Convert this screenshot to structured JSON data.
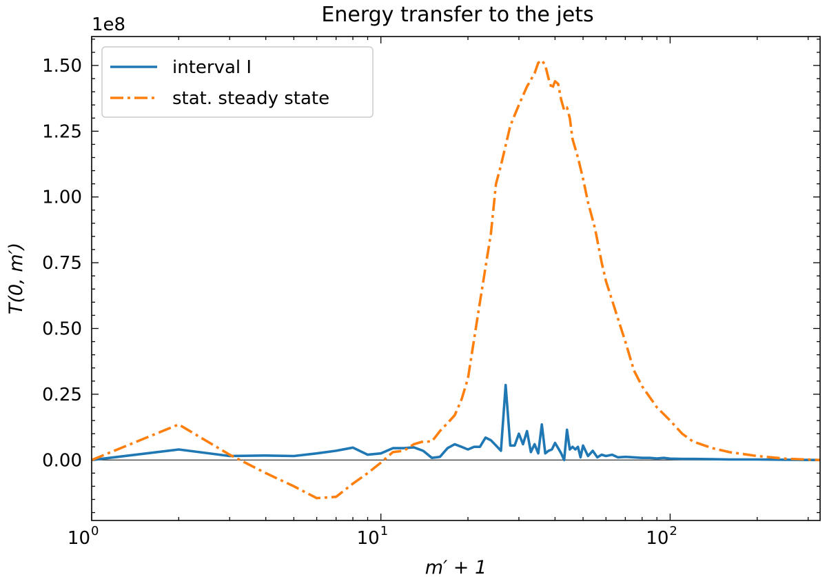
{
  "chart_data": {
    "type": "line",
    "title": "Energy transfer to the jets",
    "xlabel": "m′ + 1",
    "ylabel": "T(0, m′)",
    "x_scale": "log",
    "xlim": [
      1,
      330
    ],
    "ylim": [
      -0.23,
      1.61
    ],
    "y_offset_text": "1e8",
    "y_unit_multiplier": 100000000,
    "x_ticks": [
      {
        "value": 1,
        "base": "10",
        "exp": "0"
      },
      {
        "value": 10,
        "base": "10",
        "exp": "1"
      },
      {
        "value": 100,
        "base": "10",
        "exp": "2"
      }
    ],
    "y_ticks": [
      {
        "value": 0.0,
        "label": "0.00"
      },
      {
        "value": 0.25,
        "label": "0.25"
      },
      {
        "value": 0.5,
        "label": "0.50"
      },
      {
        "value": 0.75,
        "label": "0.75"
      },
      {
        "value": 1.0,
        "label": "1.00"
      },
      {
        "value": 1.25,
        "label": "1.25"
      },
      {
        "value": 1.5,
        "label": "1.50"
      }
    ],
    "zero_line": true,
    "grid": false,
    "legend_position": "top-left",
    "series": [
      {
        "name": "interval I",
        "color": "#1f77b4",
        "style": "solid",
        "x": [
          1,
          2,
          3,
          4,
          5,
          6,
          7,
          8,
          9,
          10,
          11,
          12,
          13,
          14,
          15,
          16,
          17,
          18,
          19,
          20,
          21,
          22,
          23,
          24,
          25,
          26,
          27,
          28,
          29,
          30,
          31,
          32,
          33,
          34,
          35,
          36,
          37,
          38,
          39,
          40,
          41,
          42,
          43,
          44,
          45,
          46,
          47,
          48,
          49,
          50,
          52,
          54,
          56,
          58,
          60,
          63,
          66,
          70,
          75,
          80,
          85,
          90,
          95,
          100,
          110,
          120,
          140,
          160,
          200,
          250,
          330
        ],
        "values": [
          0.0,
          0.04,
          0.015,
          0.017,
          0.015,
          0.025,
          0.035,
          0.047,
          0.02,
          0.025,
          0.045,
          0.045,
          0.048,
          0.035,
          0.008,
          0.012,
          0.045,
          0.06,
          0.05,
          0.04,
          0.05,
          0.05,
          0.085,
          0.075,
          0.055,
          0.035,
          0.285,
          0.055,
          0.055,
          0.1,
          0.06,
          0.11,
          0.03,
          0.06,
          0.025,
          0.135,
          0.025,
          0.035,
          0.04,
          0.065,
          0.045,
          0.025,
          0.0,
          0.115,
          0.04,
          0.05,
          0.04,
          0.05,
          0.01,
          0.055,
          0.015,
          0.035,
          0.01,
          0.02,
          0.015,
          0.02,
          0.01,
          0.012,
          0.01,
          0.008,
          0.008,
          0.006,
          0.008,
          0.005,
          0.004,
          0.004,
          0.003,
          0.002,
          0.002,
          0.001,
          0.0
        ]
      },
      {
        "name": "stat. steady state",
        "color": "#ff7f0e",
        "style": "dashdot",
        "x": [
          1,
          2,
          3,
          4,
          5,
          6,
          7,
          8,
          9,
          10,
          11,
          12,
          13,
          14,
          15,
          16,
          17,
          18,
          19,
          20,
          22,
          24,
          25,
          26,
          28,
          30,
          32,
          34,
          35,
          36,
          37,
          38,
          39,
          40,
          41,
          42,
          43,
          44,
          45,
          46,
          48,
          50,
          52,
          55,
          58,
          60,
          65,
          70,
          75,
          80,
          90,
          100,
          110,
          120,
          140,
          160,
          200,
          250,
          330
        ],
        "values": [
          0.0,
          0.135,
          0.02,
          -0.05,
          -0.1,
          -0.145,
          -0.14,
          -0.09,
          -0.05,
          -0.01,
          0.03,
          0.035,
          0.06,
          0.07,
          0.07,
          0.11,
          0.14,
          0.17,
          0.23,
          0.31,
          0.6,
          0.86,
          1.05,
          1.12,
          1.27,
          1.35,
          1.42,
          1.47,
          1.51,
          1.52,
          1.5,
          1.45,
          1.41,
          1.44,
          1.43,
          1.37,
          1.33,
          1.34,
          1.3,
          1.22,
          1.15,
          1.07,
          0.98,
          0.88,
          0.75,
          0.68,
          0.56,
          0.45,
          0.34,
          0.28,
          0.2,
          0.15,
          0.1,
          0.07,
          0.045,
          0.03,
          0.015,
          0.005,
          0.0
        ]
      }
    ]
  }
}
